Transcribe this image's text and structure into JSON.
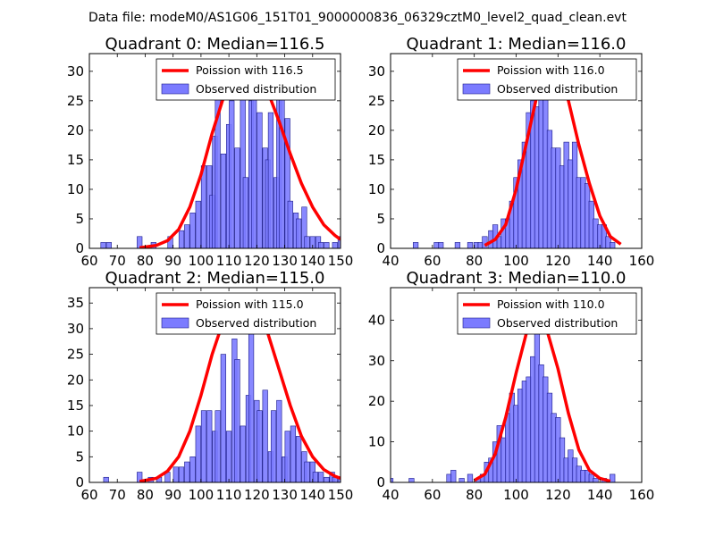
{
  "figure_title": "Data file: modeM0/AS1G06_151T01_9000000836_06329cztM0_level2_quad_clean.evt",
  "colors": {
    "bar_fill": "#7b7bff",
    "bar_edge": "#1a1a8a",
    "curve": "#ff0000",
    "frame": "#000000"
  },
  "chart_data": [
    {
      "type": "bar",
      "title": "Quadrant 0: Median=116.5",
      "xlim": [
        60,
        150
      ],
      "ylim": [
        0,
        33
      ],
      "xticks": [
        60,
        70,
        80,
        90,
        100,
        110,
        120,
        130,
        140,
        150
      ],
      "yticks": [
        0,
        5,
        10,
        15,
        20,
        25,
        30
      ],
      "legend": [
        "Poission with 116.5",
        "Observed distribution"
      ],
      "bin_width": 1.8,
      "bins": [
        [
          65,
          1
        ],
        [
          67,
          1
        ],
        [
          78,
          2
        ],
        [
          83,
          1
        ],
        [
          89,
          2
        ],
        [
          93,
          3
        ],
        [
          95,
          4
        ],
        [
          97,
          6
        ],
        [
          99,
          8
        ],
        [
          101,
          14
        ],
        [
          103,
          14
        ],
        [
          104,
          9
        ],
        [
          105,
          19
        ],
        [
          106,
          26
        ],
        [
          108,
          16
        ],
        [
          110,
          21
        ],
        [
          111,
          25
        ],
        [
          113,
          17
        ],
        [
          115,
          26
        ],
        [
          116,
          12
        ],
        [
          118,
          25
        ],
        [
          119,
          31
        ],
        [
          121,
          23
        ],
        [
          123,
          17
        ],
        [
          124,
          15
        ],
        [
          125,
          23
        ],
        [
          127,
          12
        ],
        [
          128,
          27
        ],
        [
          129,
          26
        ],
        [
          131,
          22
        ],
        [
          132,
          8
        ],
        [
          134,
          6
        ],
        [
          135,
          5
        ],
        [
          137,
          7
        ],
        [
          138,
          2
        ],
        [
          140,
          2
        ],
        [
          142,
          2
        ],
        [
          143,
          1
        ],
        [
          145,
          1
        ],
        [
          148,
          1
        ],
        [
          150,
          2
        ]
      ],
      "curve": [
        [
          78,
          0.1
        ],
        [
          84,
          0.5
        ],
        [
          88,
          1.3
        ],
        [
          92,
          3.2
        ],
        [
          96,
          7
        ],
        [
          100,
          12.5
        ],
        [
          104,
          19.5
        ],
        [
          108,
          25.5
        ],
        [
          112,
          29.8
        ],
        [
          116,
          31.3
        ],
        [
          120,
          30
        ],
        [
          124,
          26.5
        ],
        [
          128,
          21.5
        ],
        [
          132,
          16
        ],
        [
          136,
          11
        ],
        [
          140,
          7
        ],
        [
          144,
          4
        ],
        [
          148,
          2.2
        ],
        [
          150,
          1.5
        ]
      ]
    },
    {
      "type": "bar",
      "title": "Quadrant 1: Median=116.0",
      "xlim": [
        40,
        160
      ],
      "ylim": [
        0,
        33
      ],
      "xticks": [
        40,
        60,
        80,
        100,
        120,
        140,
        160
      ],
      "yticks": [
        0,
        5,
        10,
        15,
        20,
        25,
        30
      ],
      "legend": [
        "Poission with 116.0",
        "Observed distribution"
      ],
      "bin_width": 2.4,
      "bins": [
        [
          52,
          1
        ],
        [
          62,
          1
        ],
        [
          64,
          1
        ],
        [
          72,
          1
        ],
        [
          78,
          1
        ],
        [
          81,
          1
        ],
        [
          83,
          1
        ],
        [
          85,
          2
        ],
        [
          88,
          3
        ],
        [
          90,
          4
        ],
        [
          92,
          2
        ],
        [
          94,
          5
        ],
        [
          96,
          5
        ],
        [
          98,
          8
        ],
        [
          100,
          12
        ],
        [
          102,
          15
        ],
        [
          104,
          18
        ],
        [
          106,
          23
        ],
        [
          108,
          25
        ],
        [
          110,
          24
        ],
        [
          112,
          28
        ],
        [
          114,
          26
        ],
        [
          116,
          20
        ],
        [
          118,
          17
        ],
        [
          120,
          17
        ],
        [
          122,
          14
        ],
        [
          124,
          18
        ],
        [
          126,
          15
        ],
        [
          128,
          18
        ],
        [
          130,
          12
        ],
        [
          132,
          12
        ],
        [
          134,
          11
        ],
        [
          136,
          8
        ],
        [
          138,
          5
        ],
        [
          140,
          4
        ],
        [
          142,
          4
        ],
        [
          144,
          2
        ],
        [
          146,
          1
        ]
      ],
      "curve": [
        [
          85,
          0.5
        ],
        [
          90,
          1.5
        ],
        [
          95,
          4
        ],
        [
          100,
          10
        ],
        [
          105,
          18
        ],
        [
          110,
          26
        ],
        [
          114,
          30.5
        ],
        [
          117,
          31.5
        ],
        [
          120,
          30
        ],
        [
          125,
          25
        ],
        [
          130,
          17.5
        ],
        [
          135,
          11
        ],
        [
          140,
          5.5
        ],
        [
          145,
          2
        ],
        [
          150,
          0.7
        ]
      ]
    },
    {
      "type": "bar",
      "title": "Quadrant 2: Median=115.0",
      "xlim": [
        60,
        150
      ],
      "ylim": [
        0,
        38
      ],
      "xticks": [
        60,
        70,
        80,
        90,
        100,
        110,
        120,
        130,
        140,
        150
      ],
      "yticks": [
        0,
        5,
        10,
        15,
        20,
        25,
        30,
        35
      ],
      "legend": [
        "Poission with 115.0",
        "Observed distribution"
      ],
      "bin_width": 1.8,
      "bins": [
        [
          66,
          1
        ],
        [
          78,
          2
        ],
        [
          82,
          1
        ],
        [
          85,
          1
        ],
        [
          88,
          2
        ],
        [
          91,
          3
        ],
        [
          93,
          3
        ],
        [
          95,
          4
        ],
        [
          97,
          5
        ],
        [
          99,
          11
        ],
        [
          101,
          14
        ],
        [
          103,
          14
        ],
        [
          105,
          10
        ],
        [
          106,
          14
        ],
        [
          108,
          25
        ],
        [
          110,
          10
        ],
        [
          112,
          28
        ],
        [
          113,
          24
        ],
        [
          115,
          11
        ],
        [
          117,
          17
        ],
        [
          118,
          35
        ],
        [
          120,
          16
        ],
        [
          121,
          14
        ],
        [
          123,
          18
        ],
        [
          125,
          6
        ],
        [
          126,
          14
        ],
        [
          128,
          16
        ],
        [
          130,
          5
        ],
        [
          131,
          10
        ],
        [
          133,
          11
        ],
        [
          135,
          9
        ],
        [
          137,
          6
        ],
        [
          138,
          4
        ],
        [
          140,
          4
        ],
        [
          141,
          2
        ],
        [
          143,
          2
        ],
        [
          145,
          1
        ],
        [
          147,
          2
        ],
        [
          148,
          1
        ],
        [
          150,
          1
        ]
      ],
      "curve": [
        [
          78,
          0.2
        ],
        [
          84,
          0.8
        ],
        [
          88,
          2.2
        ],
        [
          92,
          5
        ],
        [
          96,
          10
        ],
        [
          100,
          17
        ],
        [
          104,
          25
        ],
        [
          108,
          31.5
        ],
        [
          112,
          35
        ],
        [
          116,
          36
        ],
        [
          120,
          34
        ],
        [
          124,
          29
        ],
        [
          128,
          22
        ],
        [
          132,
          15
        ],
        [
          136,
          9
        ],
        [
          140,
          5
        ],
        [
          144,
          2.5
        ],
        [
          148,
          1.2
        ],
        [
          150,
          0.8
        ]
      ]
    },
    {
      "type": "bar",
      "title": "Quadrant 3: Median=110.0",
      "xlim": [
        40,
        160
      ],
      "ylim": [
        0,
        48
      ],
      "xticks": [
        40,
        60,
        80,
        100,
        120,
        140,
        160
      ],
      "yticks": [
        0,
        10,
        20,
        30,
        40
      ],
      "legend": [
        "Poission with 110.0",
        "Observed distribution"
      ],
      "bin_width": 2.4,
      "bins": [
        [
          40,
          1
        ],
        [
          50,
          1
        ],
        [
          68,
          2
        ],
        [
          70,
          3
        ],
        [
          74,
          1
        ],
        [
          78,
          2
        ],
        [
          82,
          1
        ],
        [
          84,
          2
        ],
        [
          86,
          5
        ],
        [
          88,
          6
        ],
        [
          90,
          10
        ],
        [
          92,
          14
        ],
        [
          94,
          11
        ],
        [
          96,
          17
        ],
        [
          98,
          22
        ],
        [
          100,
          19
        ],
        [
          102,
          23
        ],
        [
          104,
          25
        ],
        [
          106,
          26
        ],
        [
          108,
          31
        ],
        [
          110,
          40
        ],
        [
          112,
          29
        ],
        [
          114,
          26
        ],
        [
          116,
          22
        ],
        [
          118,
          17
        ],
        [
          120,
          16
        ],
        [
          122,
          11
        ],
        [
          124,
          6
        ],
        [
          126,
          8
        ],
        [
          128,
          6
        ],
        [
          130,
          4
        ],
        [
          132,
          3
        ],
        [
          134,
          3
        ],
        [
          136,
          2
        ],
        [
          138,
          1
        ],
        [
          142,
          1
        ],
        [
          146,
          2
        ]
      ],
      "curve": [
        [
          80,
          0.5
        ],
        [
          85,
          2
        ],
        [
          90,
          7
        ],
        [
          95,
          16
        ],
        [
          100,
          27
        ],
        [
          105,
          37
        ],
        [
          108,
          42
        ],
        [
          110,
          43
        ],
        [
          112,
          42
        ],
        [
          115,
          37
        ],
        [
          120,
          28
        ],
        [
          125,
          17
        ],
        [
          130,
          8
        ],
        [
          135,
          3
        ],
        [
          140,
          1
        ],
        [
          145,
          0.3
        ]
      ]
    }
  ]
}
